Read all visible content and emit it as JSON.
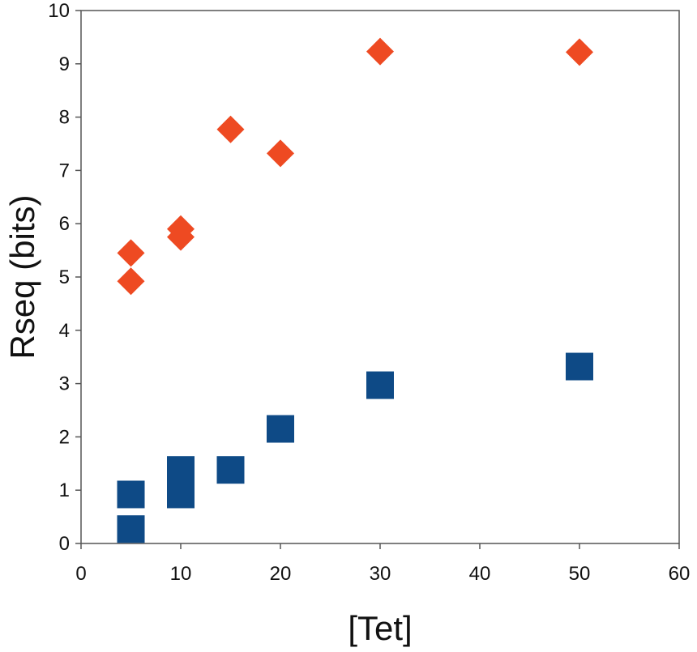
{
  "chart_data": {
    "type": "scatter",
    "title": "",
    "xlabel": "[Tet]",
    "ylabel": "Rseq (bits)",
    "xlim": [
      0,
      60
    ],
    "ylim": [
      0,
      10
    ],
    "x_ticks": [
      0,
      10,
      20,
      30,
      40,
      50,
      60
    ],
    "y_ticks": [
      0,
      1,
      2,
      3,
      4,
      5,
      6,
      7,
      8,
      9,
      10
    ],
    "grid": false,
    "legend": "none",
    "series": [
      {
        "marker": "diamond",
        "color": "#EE4A22",
        "points": [
          {
            "x": 5,
            "y": 4.92
          },
          {
            "x": 5,
            "y": 5.45
          },
          {
            "x": 10,
            "y": 5.75
          },
          {
            "x": 10,
            "y": 5.9
          },
          {
            "x": 15,
            "y": 7.77
          },
          {
            "x": 20,
            "y": 7.32
          },
          {
            "x": 30,
            "y": 9.23
          },
          {
            "x": 50,
            "y": 9.22
          }
        ]
      },
      {
        "marker": "square",
        "color": "#0E4A86",
        "points": [
          {
            "x": 5,
            "y": 0.27
          },
          {
            "x": 5,
            "y": 0.92
          },
          {
            "x": 10,
            "y": 0.92
          },
          {
            "x": 10,
            "y": 1.38
          },
          {
            "x": 15,
            "y": 1.38
          },
          {
            "x": 20,
            "y": 2.15
          },
          {
            "x": 30,
            "y": 2.97
          },
          {
            "x": 50,
            "y": 3.32
          }
        ]
      }
    ]
  }
}
